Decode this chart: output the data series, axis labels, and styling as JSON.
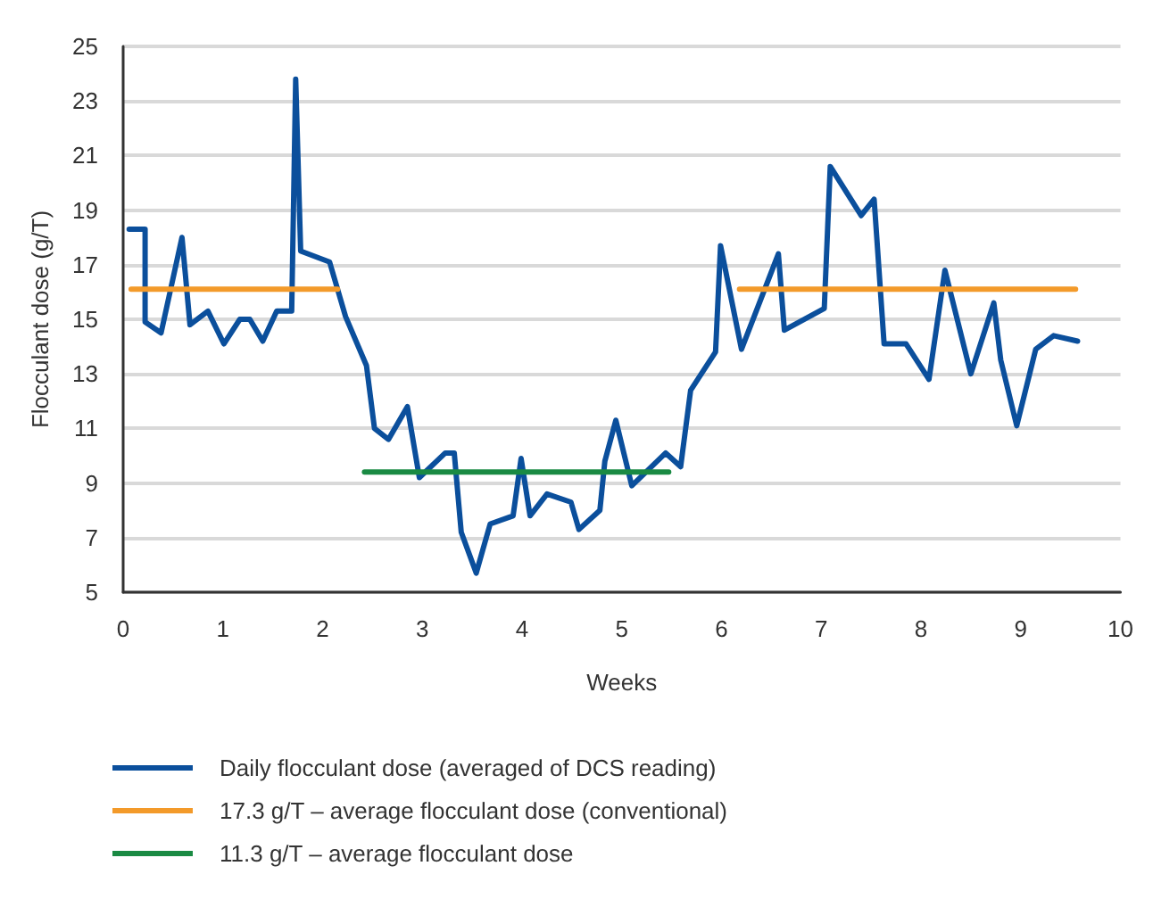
{
  "chart_data": {
    "type": "line",
    "xlabel": "Weeks",
    "ylabel": "Flocculant dose (g/T)",
    "xlim": [
      0,
      10
    ],
    "xticks": [
      0,
      1,
      2,
      3,
      4,
      5,
      6,
      7,
      8,
      9,
      10
    ],
    "ylim": [
      5,
      25
    ],
    "yticks": [
      5,
      7,
      9,
      11,
      13,
      15,
      17,
      19,
      21,
      23,
      25
    ],
    "grid": "y",
    "legend": "bottom",
    "marker": "none",
    "line_style": "solid",
    "series": [
      {
        "name": "Daily flocculant dose (averaged of DCS reading)",
        "color": "#0b4f9c",
        "x": [
          0.06,
          0.22,
          0.22,
          0.38,
          0.59,
          0.67,
          0.85,
          1.01,
          1.17,
          1.27,
          1.4,
          1.54,
          1.69,
          1.73,
          1.78,
          2.07,
          2.23,
          2.44,
          2.52,
          2.66,
          2.85,
          2.97,
          3.23,
          3.32,
          3.39,
          3.54,
          3.68,
          3.91,
          3.99,
          4.08,
          4.25,
          4.49,
          4.57,
          4.78,
          4.83,
          4.94,
          5.1,
          5.44,
          5.59,
          5.69,
          5.94,
          5.99,
          6.2,
          6.57,
          6.63,
          7.03,
          7.09,
          7.4,
          7.53,
          7.63,
          7.85,
          8.08,
          8.24,
          8.5,
          8.73,
          8.8,
          8.96,
          9.15,
          9.33,
          9.57
        ],
        "values": [
          18.3,
          18.3,
          14.9,
          14.5,
          18.0,
          14.8,
          15.3,
          14.1,
          15.0,
          15.0,
          14.2,
          15.3,
          15.3,
          23.8,
          17.5,
          17.1,
          15.1,
          13.3,
          11.0,
          10.6,
          11.8,
          9.2,
          10.1,
          10.1,
          7.2,
          5.7,
          7.5,
          7.8,
          9.9,
          7.8,
          8.6,
          8.3,
          7.3,
          8.0,
          9.8,
          11.3,
          8.9,
          10.1,
          9.6,
          12.4,
          13.8,
          17.7,
          13.9,
          17.4,
          14.6,
          15.4,
          20.6,
          18.8,
          19.4,
          14.1,
          14.1,
          12.8,
          16.8,
          13.0,
          15.6,
          13.5,
          11.1,
          13.9,
          14.4,
          14.2
        ]
      },
      {
        "name": "17.3 g/T – average flocculant dose (conventional)",
        "color": "#f39a2a",
        "x": [
          0.08,
          2.15,
          4,
          6.18,
          9.55
        ],
        "values": [
          16.1,
          16.1,
          null,
          16.1,
          16.1
        ]
      },
      {
        "name": "11.3 g/T – average flocculant dose",
        "color": "#1a8a43",
        "x": [
          2.42,
          5.47
        ],
        "values": [
          9.4,
          9.4
        ]
      }
    ]
  }
}
